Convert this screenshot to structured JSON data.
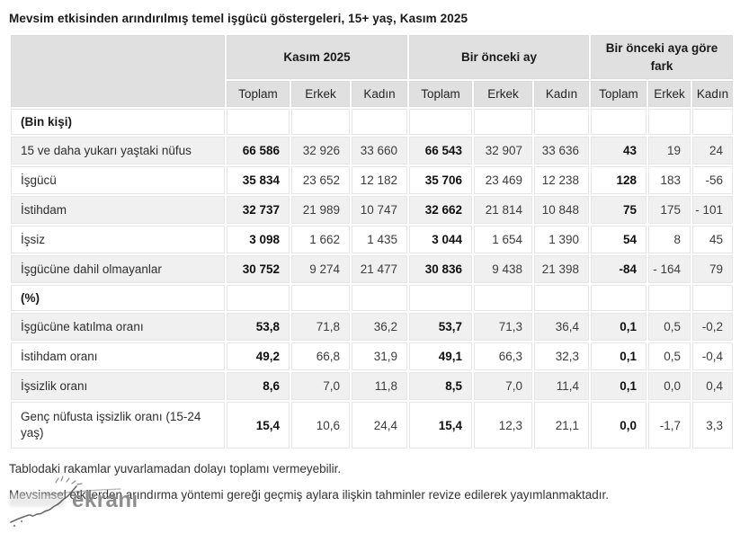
{
  "title": "Mevsim etkisinden arındırılmış temel işgücü göstergeleri, 15+ yaş, Kasım 2025",
  "colors": {
    "header_bg": "#e0e0e0",
    "stripe_bg": "#f0f0f0",
    "cell_border": "#e6e6e6"
  },
  "table": {
    "corner": "",
    "groups": [
      {
        "label": "Kasım 2025",
        "colspan": 3
      },
      {
        "label": "Bir önceki ay",
        "colspan": 3
      },
      {
        "label": "Bir önceki aya göre fark",
        "colspan": 3
      }
    ],
    "subheaders": [
      "Toplam",
      "Erkek",
      "Kadın",
      "Toplam",
      "Erkek",
      "Kadın",
      "Toplam",
      "Erkek",
      "Kadın"
    ],
    "rows": [
      {
        "type": "section",
        "label": "(Bin kişi)"
      },
      {
        "type": "data",
        "label": "15 ve daha yukarı yaştaki nüfus",
        "values": [
          "66 586",
          "32 926",
          "33 660",
          "66 543",
          "32 907",
          "33 636",
          "43",
          "19",
          "24"
        ]
      },
      {
        "type": "data",
        "label": "İşgücü",
        "values": [
          "35 834",
          "23 652",
          "12 182",
          "35 706",
          "23 469",
          "12 238",
          "128",
          "183",
          "-56"
        ]
      },
      {
        "type": "data",
        "label": "İstihdam",
        "values": [
          "32 737",
          "21 989",
          "10 747",
          "32 662",
          "21 814",
          "10 848",
          "75",
          "175",
          "- 101"
        ]
      },
      {
        "type": "data",
        "label": "İşsiz",
        "values": [
          "3 098",
          "1 662",
          "1 435",
          "3 044",
          "1 654",
          "1 390",
          "54",
          "8",
          "45"
        ]
      },
      {
        "type": "data",
        "label": "İşgücüne dahil olmayanlar",
        "values": [
          "30 752",
          "9 274",
          "21 477",
          "30 836",
          "9 438",
          "21 398",
          "-84",
          "- 164",
          "79"
        ]
      },
      {
        "type": "section",
        "label": "(%)"
      },
      {
        "type": "data",
        "label": "İşgücüne katılma oranı",
        "values": [
          "53,8",
          "71,8",
          "36,2",
          "53,7",
          "71,3",
          "36,4",
          "0,1",
          "0,5",
          "-0,2"
        ]
      },
      {
        "type": "data",
        "label": "İstihdam oranı",
        "values": [
          "49,2",
          "66,8",
          "31,9",
          "49,1",
          "66,3",
          "32,3",
          "0,1",
          "0,5",
          "-0,4"
        ]
      },
      {
        "type": "data",
        "label": "İşsizlik oranı",
        "values": [
          "8,6",
          "7,0",
          "11,8",
          "8,5",
          "7,0",
          "11,4",
          "0,1",
          "0,0",
          "0,4"
        ]
      },
      {
        "type": "data",
        "tall": true,
        "label": "Genç nüfusta işsizlik oranı (15-24 yaş)",
        "values": [
          "15,4",
          "10,6",
          "24,4",
          "15,4",
          "12,3",
          "21,1",
          "0,0",
          "-1,7",
          "3,3"
        ]
      }
    ],
    "bold_value_columns": [
      0,
      3,
      6
    ]
  },
  "notes": [
    "Tablodaki rakamlar yuvarlamadan dolayı toplamı vermeyebilir.",
    "Mevsimsel etkilerden arındırma yöntemi gereği geçmiş aylara ilişkin tahminler revize edilerek yayımlanmaktadır."
  ],
  "watermark": {
    "text": "ekranı"
  }
}
